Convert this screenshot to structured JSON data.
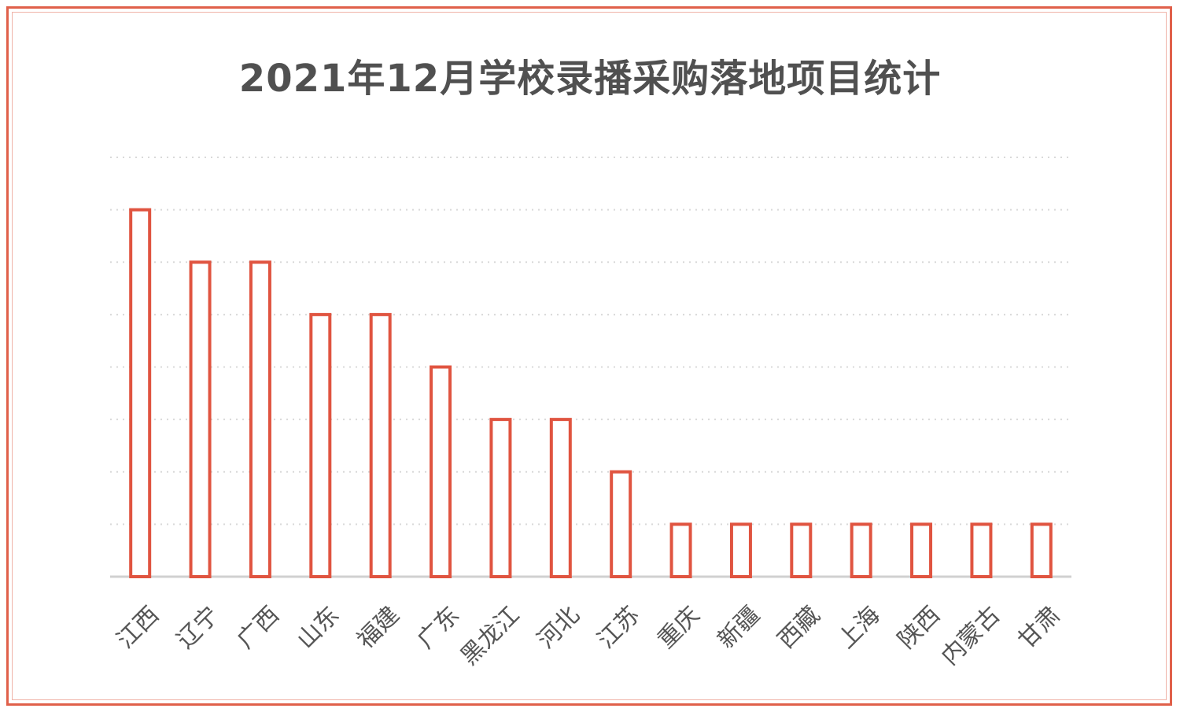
{
  "chart_data": {
    "type": "bar",
    "title": "2021年12月学校录播采购落地项目统计",
    "categories": [
      "江西",
      "辽宁",
      "广西",
      "山东",
      "福建",
      "广东",
      "黑龙江",
      "河北",
      "江苏",
      "重庆",
      "新疆",
      "西藏",
      "上海",
      "陕西",
      "内蒙古",
      "甘肃"
    ],
    "values": [
      7,
      6,
      6,
      5,
      5,
      4,
      3,
      3,
      2,
      1,
      1,
      1,
      1,
      1,
      1,
      1
    ],
    "ylim": [
      0,
      8
    ],
    "grid": true,
    "legend": "none",
    "colors": {
      "bar_stroke": "#e05440",
      "bar_fill": "#ffffff",
      "grid": "#d9d9d9",
      "frame": "#e0604a"
    }
  }
}
